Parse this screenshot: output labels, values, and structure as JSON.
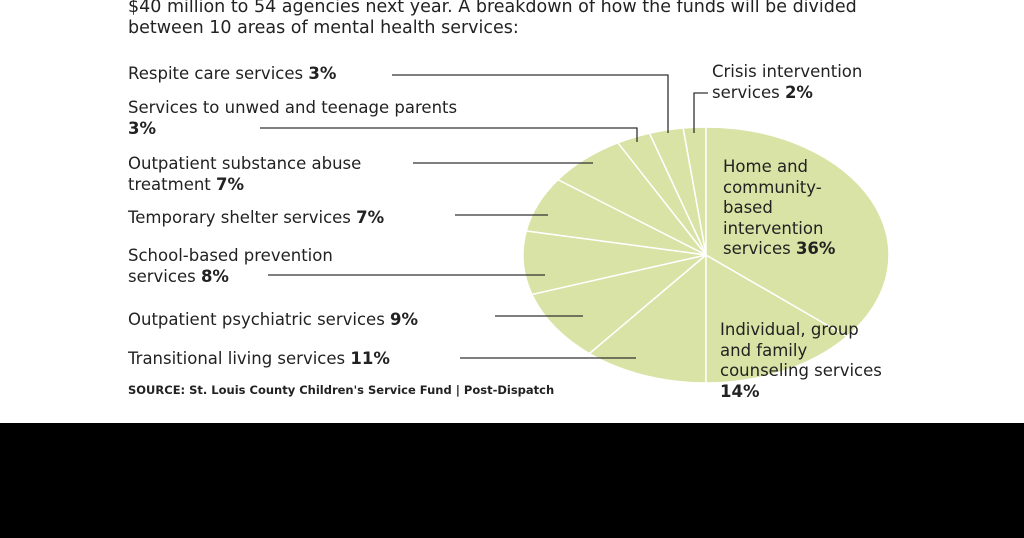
{
  "chart_data": {
    "type": "pie",
    "subtitle": "$40 million to 54 agencies next year. A breakdown of how the funds will be divided between 10 areas of mental health services:",
    "categories": [
      "Home and community-based intervention services",
      "Individual, group and family counseling services",
      "Transitional living services",
      "Outpatient psychiatric services",
      "School-based prevention services",
      "Temporary shelter services",
      "Outpatient substance abuse treatment",
      "Services to unwed and teenage parents",
      "Respite care services",
      "Crisis intervention services"
    ],
    "values": [
      36,
      14,
      11,
      9,
      8,
      7,
      7,
      3,
      3,
      2
    ],
    "value_labels": [
      "36%",
      "14%",
      "11%",
      "9%",
      "8%",
      "7%",
      "7%",
      "3%",
      "3%",
      "2%"
    ],
    "color": "#d8e3a5",
    "source": "SOURCE: St. Louis County Children's Service Fund | Post-Dispatch"
  }
}
